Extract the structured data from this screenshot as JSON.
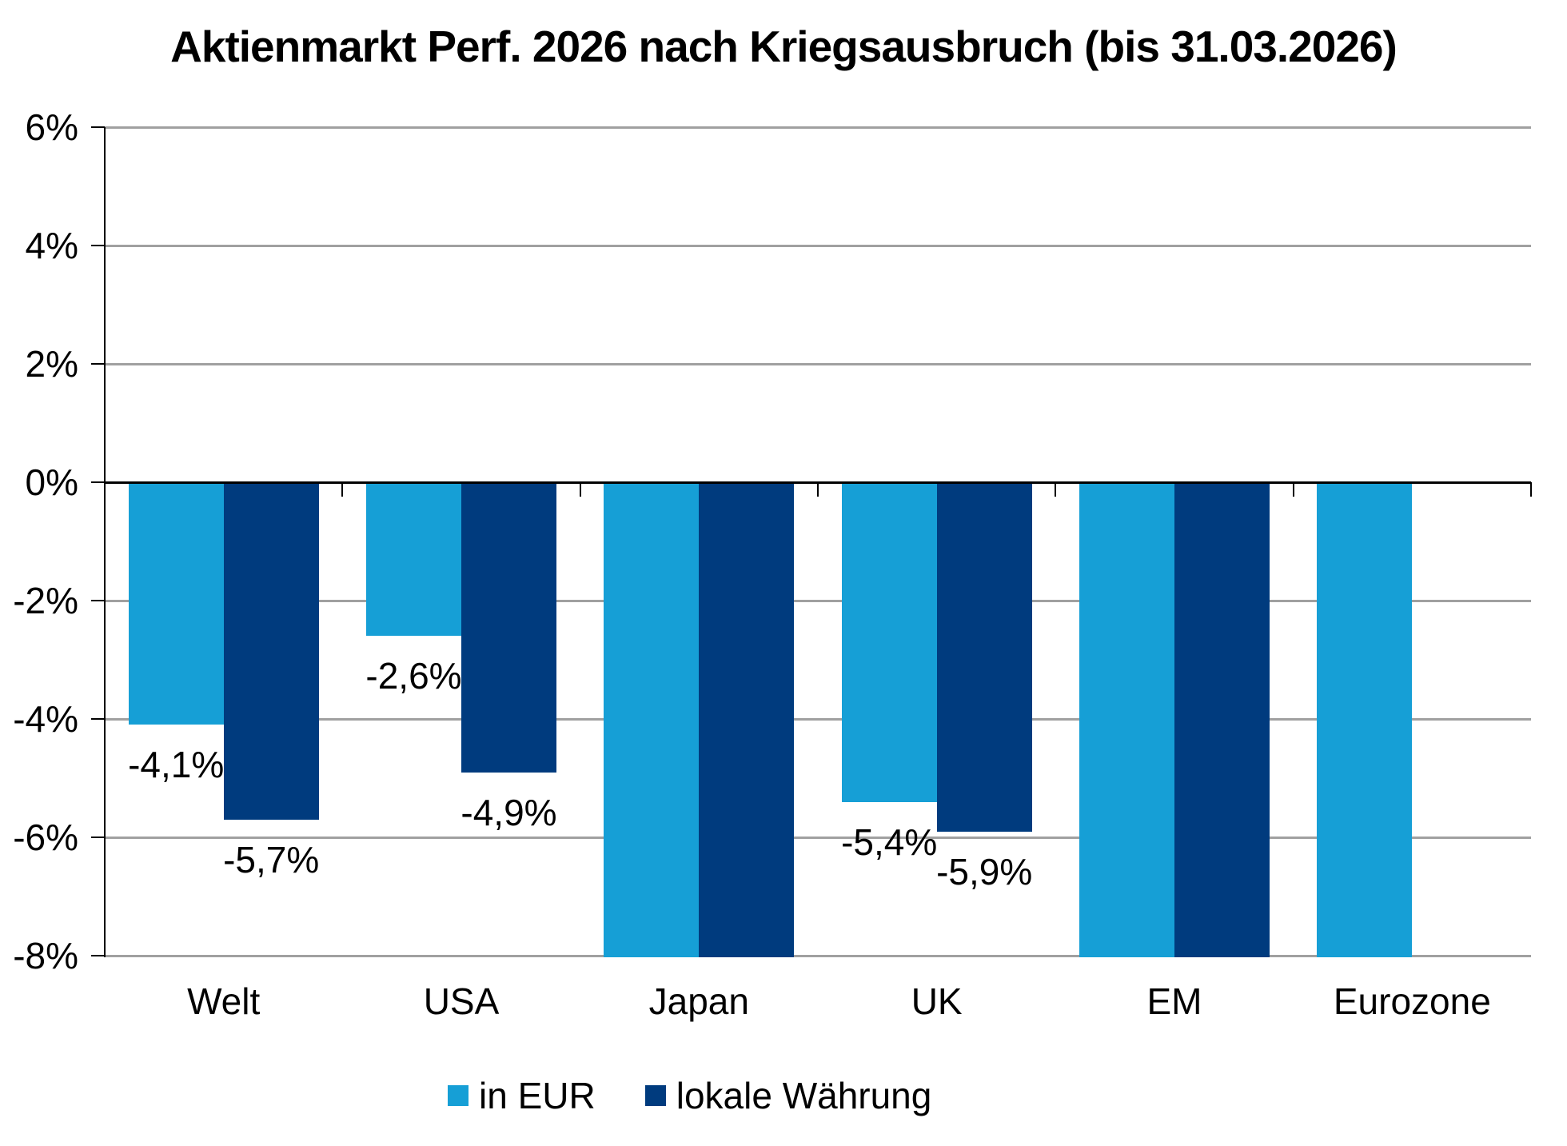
{
  "chart_data": {
    "type": "bar",
    "title": "Aktienmarkt Perf. 2026 nach Kriegsausbruch (bis 31.03.2026)",
    "categories": [
      "Welt",
      "USA",
      "Japan",
      "UK",
      "EM",
      "Eurozone"
    ],
    "series": [
      {
        "name": "in EUR",
        "color": "#169FD6",
        "values": [
          -4.1,
          -2.6,
          "<-8",
          -5.4,
          "<-8",
          "<-8"
        ],
        "data_labels": [
          "-4,1%",
          "-2,6%",
          "",
          "-5,4%",
          "",
          ""
        ]
      },
      {
        "name": "lokale Währung",
        "color": "#003B7E",
        "values": [
          -5.7,
          -4.9,
          "<-8",
          -5.9,
          "<-8",
          null
        ],
        "data_labels": [
          "-5,7%",
          "-4,9%",
          "",
          "-5,9%",
          "",
          ""
        ]
      }
    ],
    "xlabel": "",
    "ylabel": "",
    "ylim": [
      -8,
      6
    ],
    "yticks": [
      {
        "value": 6,
        "label": "6%"
      },
      {
        "value": 4,
        "label": "4%"
      },
      {
        "value": 2,
        "label": "2%"
      },
      {
        "value": 0,
        "label": "0%"
      },
      {
        "value": -2,
        "label": "-2%"
      },
      {
        "value": -4,
        "label": "-4%"
      },
      {
        "value": -6,
        "label": "-6%"
      },
      {
        "value": -8,
        "label": "-8%"
      }
    ],
    "grid": true,
    "legend_position": "bottom"
  },
  "legend": {
    "items": [
      {
        "label": "in EUR",
        "color": "#169FD6"
      },
      {
        "label": "lokale Währung",
        "color": "#003B7E"
      }
    ]
  },
  "colors": {
    "series_in_eur": "#169FD6",
    "series_lokale_waehrung": "#003B7E",
    "gridline": "#A0A0A0",
    "axis": "#000000",
    "background": "#FFFFFF",
    "text": "#000000"
  }
}
